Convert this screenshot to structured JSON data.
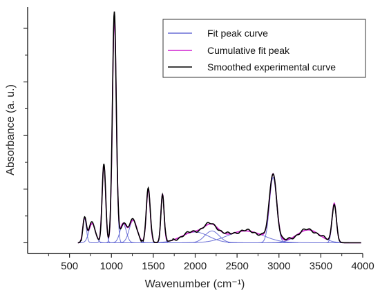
{
  "chart_data": {
    "type": "line",
    "xlabel": "Wavenumber (cm⁻¹)",
    "ylabel": "Absorbance (a. u.)",
    "xlim": [
      0,
      4000
    ],
    "ylim": [
      -0.2,
      4.4
    ],
    "x_ticks": [
      500,
      1000,
      1500,
      2000,
      2500,
      3000,
      3500,
      4000
    ],
    "x_tick_labels": [
      "500",
      "1000",
      "1500",
      "2000",
      "2500",
      "3000",
      "3500",
      "4000"
    ],
    "y_ticks_visible_labels": false,
    "grid": false,
    "legend_position": "top-right",
    "legend": [
      {
        "key": "fit",
        "label": "Fit peak curve",
        "color": "#6a6fd6"
      },
      {
        "key": "cumulative",
        "label": "Cumulative fit peak",
        "color": "#d020d0"
      },
      {
        "key": "experimental",
        "label": "Smoothed experimental curve",
        "color": "#000000"
      }
    ],
    "baseline": 0.0,
    "fit_peaks": [
      {
        "center": 680,
        "height": 0.45,
        "fwhm": 50
      },
      {
        "center": 770,
        "height": 0.36,
        "fwhm": 90
      },
      {
        "center": 910,
        "height": 1.45,
        "fwhm": 50
      },
      {
        "center": 1035,
        "height": 4.2,
        "fwhm": 55
      },
      {
        "center": 1140,
        "height": 0.35,
        "fwhm": 90
      },
      {
        "center": 1260,
        "height": 0.42,
        "fwhm": 110
      },
      {
        "center": 1440,
        "height": 1.0,
        "fwhm": 55
      },
      {
        "center": 1610,
        "height": 0.9,
        "fwhm": 45
      },
      {
        "center": 2000,
        "height": 0.2,
        "fwhm": 380
      },
      {
        "center": 2200,
        "height": 0.22,
        "fwhm": 200
      },
      {
        "center": 2600,
        "height": 0.22,
        "fwhm": 500
      },
      {
        "center": 2930,
        "height": 1.22,
        "fwhm": 100
      },
      {
        "center": 3350,
        "height": 0.24,
        "fwhm": 320
      },
      {
        "center": 3660,
        "height": 0.72,
        "fwhm": 60
      }
    ],
    "colors": {
      "fit": "#6a6fd6",
      "cumulative": "#d020d0",
      "experimental": "#000000",
      "axis": "#222222"
    }
  }
}
